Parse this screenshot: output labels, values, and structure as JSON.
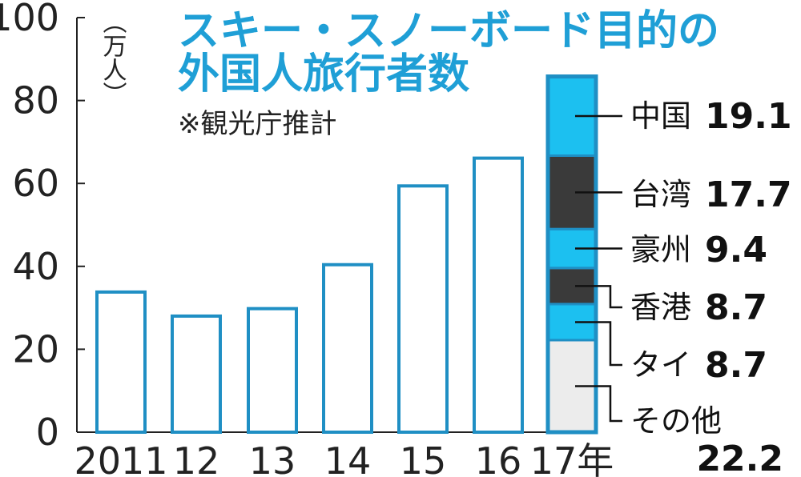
{
  "chart_data": {
    "type": "bar",
    "title_lines": [
      "スキー・スノーボード目的の",
      "外国人旅行者数"
    ],
    "source_note": "※観光庁推計",
    "unit": "（万人）",
    "ylim": [
      0,
      100
    ],
    "yticks": [
      0,
      20,
      40,
      60,
      80,
      100
    ],
    "categories": [
      "2011",
      "12",
      "13",
      "14",
      "15",
      "16",
      "17年"
    ],
    "values": [
      33.8,
      28.0,
      29.8,
      40.4,
      59.4,
      66.1,
      85.8
    ],
    "stacked_category": "17年",
    "stack_segments": [
      {
        "name": "その他",
        "value": "22.2",
        "color": "#ececec"
      },
      {
        "name": "タイ",
        "value": "8.7",
        "color": "#1cc0f0"
      },
      {
        "name": "香港",
        "value": "8.7",
        "color": "#3a3a3a"
      },
      {
        "name": "豪州",
        "value": "9.4",
        "color": "#1cc0f0"
      },
      {
        "name": "台湾",
        "value": "17.7",
        "color": "#3a3a3a"
      },
      {
        "name": "中国",
        "value": "19.1",
        "color": "#1cc0f0"
      }
    ],
    "colors": {
      "bar_outline": "#1f8fc4",
      "title": "#1f9fd6",
      "axis": "#222222"
    }
  }
}
